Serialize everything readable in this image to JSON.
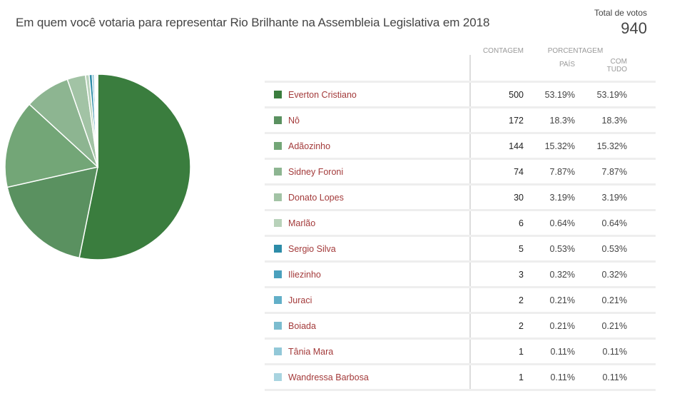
{
  "header": {
    "title": "Em quem você votaria para representar Rio Brilhante na Assembleia Legislativa em 2018",
    "total_label": "Total de votos",
    "total_value": "940"
  },
  "table": {
    "headers": {
      "count": "CONTAGEM",
      "percentage": "PORCENTAGEM",
      "country": "PAÍS",
      "all_line1": "COM",
      "all_line2": "TUDO"
    },
    "rows": [
      {
        "name": "Everton Cristiano",
        "count": "500",
        "pct_country": "53.19%",
        "pct_all": "53.19%",
        "color": "#3a7d3e"
      },
      {
        "name": "Nô",
        "count": "172",
        "pct_country": "18.3%",
        "pct_all": "18.3%",
        "color": "#5a9160"
      },
      {
        "name": "Adãozinho",
        "count": "144",
        "pct_country": "15.32%",
        "pct_all": "15.32%",
        "color": "#73a677"
      },
      {
        "name": "Sidney Foroni",
        "count": "74",
        "pct_country": "7.87%",
        "pct_all": "7.87%",
        "color": "#8db591"
      },
      {
        "name": "Donato Lopes",
        "count": "30",
        "pct_country": "3.19%",
        "pct_all": "3.19%",
        "color": "#a2c3a5"
      },
      {
        "name": "Marlão",
        "count": "6",
        "pct_country": "0.64%",
        "pct_all": "0.64%",
        "color": "#b8d2ba"
      },
      {
        "name": "Sergio Silva",
        "count": "5",
        "pct_country": "0.53%",
        "pct_all": "0.53%",
        "color": "#2d8ca8"
      },
      {
        "name": "Iliezinho",
        "count": "3",
        "pct_country": "0.32%",
        "pct_all": "0.32%",
        "color": "#4aa0bd"
      },
      {
        "name": "Juraci",
        "count": "2",
        "pct_country": "0.21%",
        "pct_all": "0.21%",
        "color": "#62afc8"
      },
      {
        "name": "Boiada",
        "count": "2",
        "pct_country": "0.21%",
        "pct_all": "0.21%",
        "color": "#7bbccf"
      },
      {
        "name": "Tânia Mara",
        "count": "1",
        "pct_country": "0.11%",
        "pct_all": "0.11%",
        "color": "#92c8d8"
      },
      {
        "name": "Wandressa Barbosa",
        "count": "1",
        "pct_country": "0.11%",
        "pct_all": "0.11%",
        "color": "#a8d4e0"
      }
    ]
  },
  "chart_data": {
    "type": "pie",
    "title": "Em quem você votaria para representar Rio Brilhante na Assembleia Legislativa em 2018",
    "categories": [
      "Everton Cristiano",
      "Nô",
      "Adãozinho",
      "Sidney Foroni",
      "Donato Lopes",
      "Marlão",
      "Sergio Silva",
      "Iliezinho",
      "Juraci",
      "Boiada",
      "Tânia Mara",
      "Wandressa Barbosa"
    ],
    "values": [
      500,
      172,
      144,
      74,
      30,
      6,
      5,
      3,
      2,
      2,
      1,
      1
    ],
    "percentages": [
      53.19,
      18.3,
      15.32,
      7.87,
      3.19,
      0.64,
      0.53,
      0.32,
      0.21,
      0.21,
      0.11,
      0.11
    ],
    "colors": [
      "#3a7d3e",
      "#5a9160",
      "#73a677",
      "#8db591",
      "#a2c3a5",
      "#b8d2ba",
      "#2d8ca8",
      "#4aa0bd",
      "#62afc8",
      "#7bbccf",
      "#92c8d8",
      "#a8d4e0"
    ],
    "total": 940,
    "legend_position": "right (table)"
  }
}
